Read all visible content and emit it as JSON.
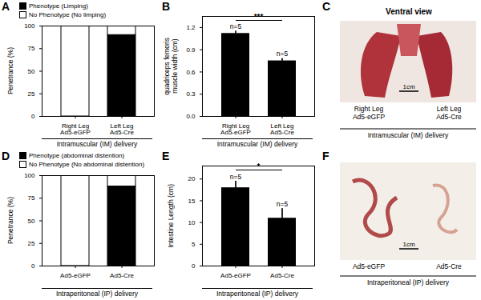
{
  "chart_data": [
    {
      "title": "A",
      "type": "bar",
      "stacked": true,
      "legend": "top",
      "categories": [
        "Right Leg\nAd5-eGFP",
        "Left Leg\nAd5-Cre"
      ],
      "xlabel": "Intramuscular (IM) delivery",
      "ylabel": "Penetrance (%)",
      "ylim": [
        0,
        100
      ],
      "yticks": [
        0,
        25,
        50,
        75,
        100
      ],
      "series": [
        {
          "name": "Phenotype (Limping)",
          "color": "#000000",
          "values": [
            0,
            90
          ]
        },
        {
          "name": "No Phenotype (No limping)",
          "color": "#ffffff",
          "values": [
            100,
            10
          ]
        }
      ]
    },
    {
      "title": "B",
      "type": "bar",
      "color": "#000000",
      "categories": [
        "Right Leg\nAd5-eGFP",
        "Left Leg\nAd5-Cre"
      ],
      "xlabel": "Intramuscular (IM) delivery",
      "ylabel": "quadriceps femoris\nmuscle width (cm)",
      "ylim": [
        0,
        1.35
      ],
      "yticks": [
        {
          "value": 0,
          "label": "0.0"
        },
        0.3,
        0.6,
        0.9,
        1.2
      ],
      "values": [
        1.12,
        0.75
      ],
      "errors": [
        0.03,
        0.03
      ],
      "n_labels": [
        "n=5",
        "n=5"
      ],
      "significance": "***"
    },
    {
      "title": "D",
      "type": "bar",
      "stacked": true,
      "legend": "top",
      "categories": [
        "Ad5-eGFP",
        "Ad5-Cre"
      ],
      "xlabel": "Intraperitoneal (IP) delivery",
      "ylabel": "Penetrance (%)",
      "ylim": [
        0,
        100
      ],
      "yticks": [
        0,
        25,
        50,
        75,
        100
      ],
      "series": [
        {
          "name": "Phenotype (abdominal distention)",
          "color": "#000000",
          "values": [
            0,
            88
          ]
        },
        {
          "name": "No Phenotype (No abdominal distention)",
          "color": "#ffffff",
          "values": [
            100,
            12
          ]
        }
      ]
    },
    {
      "title": "E",
      "type": "bar",
      "color": "#000000",
      "categories": [
        "Ad5-eGFP",
        "Ad5-Cre"
      ],
      "xlabel": "Intraperitoneal (IP) delivery",
      "ylabel": "Intestine Length (cm)",
      "ylim": [
        0,
        23
      ],
      "yticks": [
        0,
        5,
        10,
        15,
        20
      ],
      "values": [
        18,
        11
      ],
      "errors": [
        1.5,
        2.2
      ],
      "n_labels": [
        "n=5",
        "n=5"
      ],
      "significance": "*"
    }
  ],
  "photos": [
    {
      "title": "C",
      "heading": "Ventral view",
      "labels": [
        "Right Leg\nAd5-eGFP",
        "Left Leg\nAd5-Cre"
      ],
      "xlabel": "Intramuscular (IM) delivery",
      "scale_bar": "1cm"
    },
    {
      "title": "F",
      "labels": [
        "Ad5-eGFP",
        "Ad5-Cre"
      ],
      "xlabel": "Intraperitoneal (IP) delivery",
      "scale_bar": "1cm"
    }
  ]
}
